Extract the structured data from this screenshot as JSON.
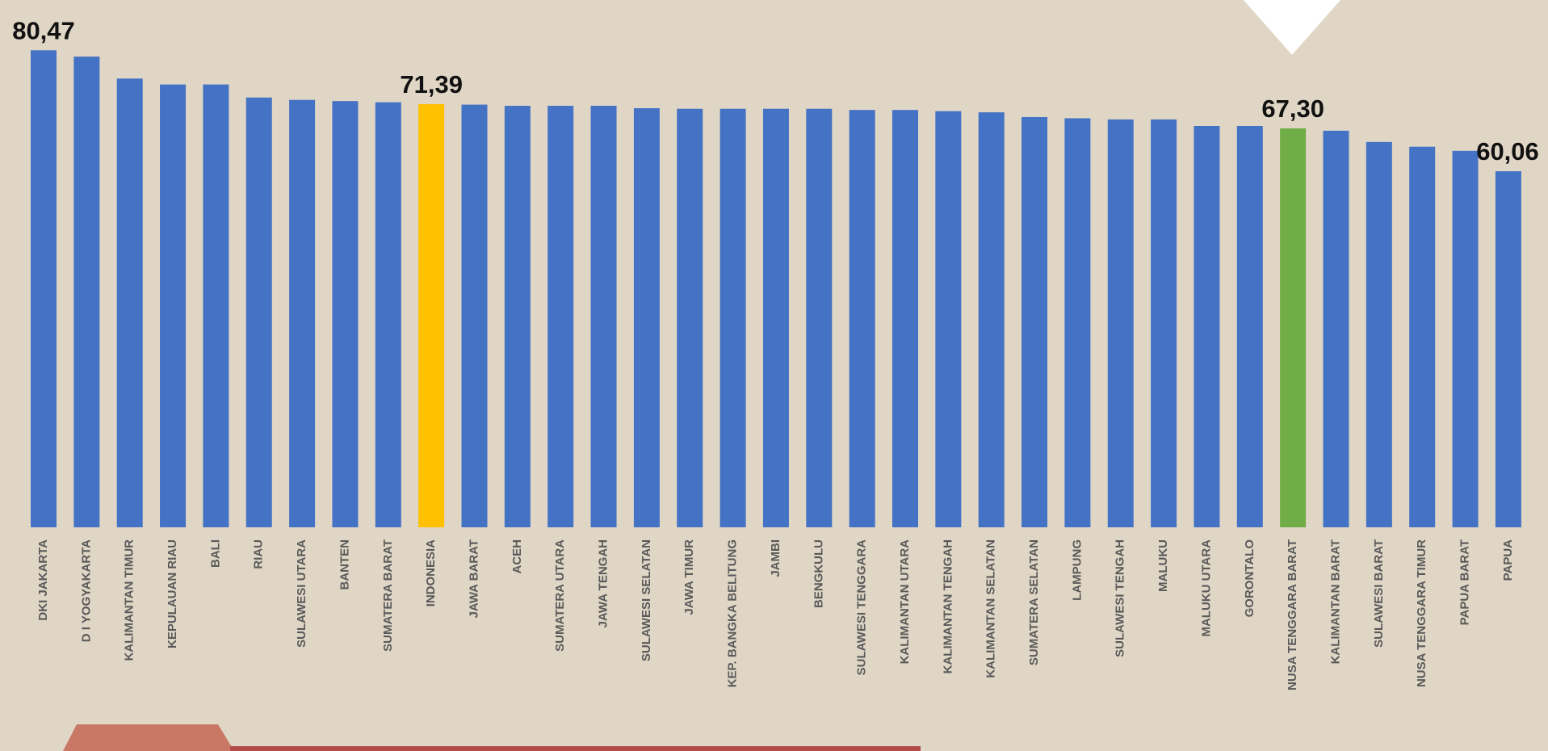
{
  "chart_data": {
    "type": "bar",
    "categories": [
      "DKI JAKARTA",
      "D I YOGYAKARTA",
      "KALIMANTAN TIMUR",
      "KEPULAUAN RIAU",
      "BALI",
      "RIAU",
      "SULAWESI UTARA",
      "BANTEN",
      "SUMATERA BARAT",
      "INDONESIA",
      "JAWA BARAT",
      "ACEH",
      "SUMATERA UTARA",
      "JAWA TENGAH",
      "SULAWESI SELATAN",
      "JAWA TIMUR",
      "KEP. BANGKA BELITUNG",
      "JAMBI",
      "BENGKULU",
      "SULAWESI TENGGARA",
      "KALIMANTAN UTARA",
      "KALIMANTAN TENGAH",
      "KALIMANTAN SELATAN",
      "SUMATERA SELATAN",
      "LAMPUNG",
      "SULAWESI TENGAH",
      "MALUKU",
      "MALUKU UTARA",
      "GORONTALO",
      "NUSA TENGGARA BARAT",
      "KALIMANTAN BARAT",
      "SULAWESI BARAT",
      "NUSA TENGGARA TIMUR",
      "PAPUA BARAT",
      "PAPUA"
    ],
    "values": [
      80.47,
      79.4,
      75.7,
      74.7,
      74.7,
      72.5,
      72.1,
      71.9,
      71.7,
      71.39,
      71.3,
      71.1,
      71.1,
      71.1,
      70.7,
      70.6,
      70.6,
      70.6,
      70.6,
      70.4,
      70.4,
      70.2,
      70.0,
      69.2,
      69.0,
      68.8,
      68.8,
      67.7,
      67.7,
      67.3,
      66.9,
      65.0,
      64.2,
      63.5,
      60.06
    ],
    "value_labels": [
      "80,47",
      null,
      null,
      null,
      null,
      null,
      null,
      null,
      null,
      "71,39",
      null,
      null,
      null,
      null,
      null,
      null,
      null,
      null,
      null,
      null,
      null,
      null,
      null,
      null,
      null,
      null,
      null,
      null,
      null,
      "67,30",
      null,
      null,
      null,
      null,
      "60,06"
    ],
    "colors": [
      "#4472c4",
      "#4472c4",
      "#4472c4",
      "#4472c4",
      "#4472c4",
      "#4472c4",
      "#4472c4",
      "#4472c4",
      "#4472c4",
      "#ffc000",
      "#4472c4",
      "#4472c4",
      "#4472c4",
      "#4472c4",
      "#4472c4",
      "#4472c4",
      "#4472c4",
      "#4472c4",
      "#4472c4",
      "#4472c4",
      "#4472c4",
      "#4472c4",
      "#4472c4",
      "#4472c4",
      "#4472c4",
      "#4472c4",
      "#4472c4",
      "#4472c4",
      "#4472c4",
      "#70ad47",
      "#4472c4",
      "#4472c4",
      "#4472c4",
      "#4472c4",
      "#4472c4"
    ],
    "ylim": [
      0,
      85
    ]
  }
}
